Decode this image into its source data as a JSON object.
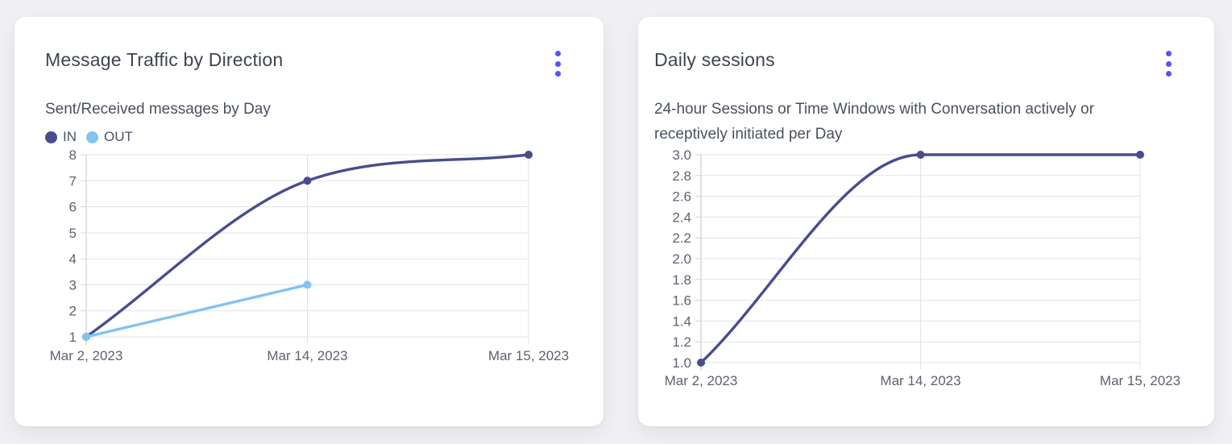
{
  "colors": {
    "accent": "#5b52f0",
    "grid": "#e3e3e8",
    "axis": "#d6d6dc",
    "tick_text": "#5c6270",
    "page_bg": "#f0f0f3",
    "card_bg": "#ffffff"
  },
  "cards": [
    {
      "title": "Message Traffic by Direction",
      "subtitle": "Sent/Received messages by Day",
      "menu_icon": "kebab-menu-icon"
    },
    {
      "title": "Daily sessions",
      "subtitle": "24-hour Sessions or Time Windows with Conversation actively or receptively initiated per Day",
      "menu_icon": "kebab-menu-icon"
    }
  ],
  "chart_data": [
    {
      "type": "line",
      "title": "Message Traffic by Direction",
      "subtitle": "Sent/Received messages by Day",
      "x": [
        "Mar 2, 2023",
        "Mar 14, 2023",
        "Mar 15, 2023"
      ],
      "series": [
        {
          "name": "IN",
          "color": "#474d8e",
          "values": [
            1,
            7,
            8
          ],
          "smooth": true,
          "point_radius": 5
        },
        {
          "name": "OUT",
          "color": "#82c3f1",
          "values": [
            1,
            3,
            null
          ],
          "smooth": false,
          "point_radius": 5
        }
      ],
      "ylim": [
        1,
        8
      ],
      "yticks": [
        "1",
        "2",
        "3",
        "4",
        "5",
        "6",
        "7",
        "8"
      ],
      "grid": true,
      "legend_position": "top-left"
    },
    {
      "type": "line",
      "title": "Daily sessions",
      "subtitle": "24-hour Sessions or Time Windows with Conversation actively or receptively initiated per Day",
      "x": [
        "Mar 2, 2023",
        "Mar 14, 2023",
        "Mar 15, 2023"
      ],
      "series": [
        {
          "name": "Daily sessions",
          "color": "#474d8e",
          "values": [
            1.0,
            3.0,
            3.0
          ],
          "smooth": true,
          "point_radius": 5
        }
      ],
      "ylim": [
        1.0,
        3.0
      ],
      "yticks": [
        "1.0",
        "1.2",
        "1.4",
        "1.6",
        "1.8",
        "2.0",
        "2.2",
        "2.4",
        "2.6",
        "2.8",
        "3.0"
      ],
      "grid": true,
      "legend_position": "none"
    }
  ]
}
